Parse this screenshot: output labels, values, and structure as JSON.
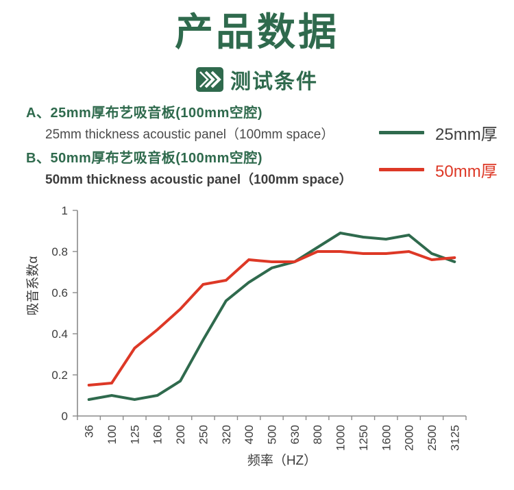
{
  "header": {
    "title": "产品数据",
    "subtitle": "测试条件"
  },
  "specs": [
    {
      "label_zh": "A、25mm厚布艺吸音板(100mm空腔)",
      "label_en": "25mm thickness acoustic panel（100mm space）"
    },
    {
      "label_zh": "B、50mm厚布艺吸音板(100mm空腔)",
      "label_en": "50mm thickness acoustic panel（100mm space）"
    }
  ],
  "legend": [
    {
      "label": "25mm厚",
      "color": "#2f6a4d"
    },
    {
      "label": "50mm厚",
      "color": "#dd3826"
    }
  ],
  "colors": {
    "accent_green": "#2f6a4d",
    "accent_red": "#dd3826",
    "axis_gray": "#8a8a8a",
    "text_dark": "#3c3c3c"
  },
  "chart_data": {
    "type": "line",
    "title": "",
    "xlabel": "频率（HZ）",
    "ylabel": "吸音系数α",
    "ylim": [
      0,
      1
    ],
    "yticks": [
      0,
      0.2,
      0.4,
      0.6,
      0.8,
      1
    ],
    "grid": false,
    "legend_position": "top-right-outside",
    "categories": [
      "36",
      "100",
      "125",
      "160",
      "200",
      "250",
      "320",
      "400",
      "500",
      "630",
      "800",
      "1000",
      "1250",
      "1600",
      "2000",
      "2500",
      "3125"
    ],
    "series": [
      {
        "name": "25mm厚",
        "color": "#2f6a4d",
        "values": [
          0.08,
          0.1,
          0.08,
          0.1,
          0.17,
          0.37,
          0.56,
          0.65,
          0.72,
          0.75,
          0.82,
          0.89,
          0.87,
          0.86,
          0.88,
          0.79,
          0.75
        ]
      },
      {
        "name": "50mm厚",
        "color": "#dd3826",
        "values": [
          0.15,
          0.16,
          0.33,
          0.42,
          0.52,
          0.64,
          0.66,
          0.76,
          0.75,
          0.75,
          0.8,
          0.8,
          0.79,
          0.79,
          0.8,
          0.76,
          0.77
        ]
      }
    ]
  }
}
